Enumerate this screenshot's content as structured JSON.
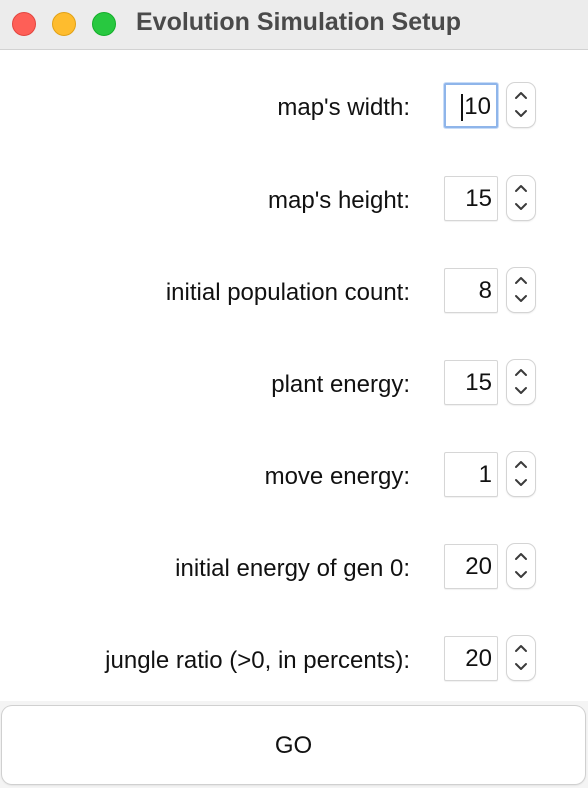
{
  "window": {
    "title": "Evolution Simulation Setup",
    "controls": [
      "close",
      "minimize",
      "zoom"
    ]
  },
  "form": {
    "fields": [
      {
        "id": "map-width",
        "label": "map's width:",
        "value": "10",
        "focused": true
      },
      {
        "id": "map-height",
        "label": "map's height:",
        "value": "15"
      },
      {
        "id": "initial-population-count",
        "label": "initial population count:",
        "value": "8"
      },
      {
        "id": "plant-energy",
        "label": "plant energy:",
        "value": "15"
      },
      {
        "id": "move-energy",
        "label": "move energy:",
        "value": "1"
      },
      {
        "id": "initial-energy-gen-0",
        "label": "initial energy of gen 0:",
        "value": "20"
      },
      {
        "id": "jungle-ratio",
        "label": "jungle ratio (>0, in percents):",
        "value": "20"
      }
    ]
  },
  "actions": {
    "go_label": "GO"
  },
  "colors": {
    "close": "#fe5f57",
    "minimize": "#febc2e",
    "zoom": "#28c840",
    "focus_ring": "#8fb5ea",
    "titlebar": "#ececec"
  },
  "icons": {
    "stepper_up": "chevron-up-icon",
    "stepper_down": "chevron-down-icon"
  }
}
